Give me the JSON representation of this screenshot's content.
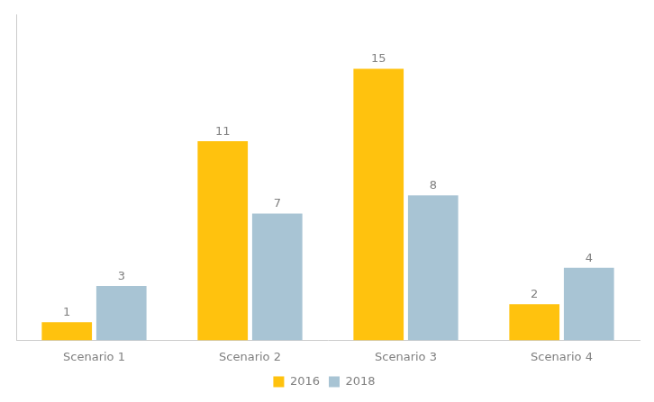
{
  "chart_data": {
    "type": "bar",
    "categories": [
      "Scenario 1",
      "Scenario 2",
      "Scenario 3",
      "Scenario 4"
    ],
    "series": [
      {
        "name": "2016",
        "color": "#FFC20E",
        "values": [
          1,
          11,
          15,
          2
        ]
      },
      {
        "name": "2018",
        "color": "#A8C4D4",
        "values": [
          3,
          7,
          8,
          4
        ]
      }
    ],
    "ylim": [
      0,
      18
    ],
    "data_labels": true,
    "tick_labels": "x",
    "legend": "bottom",
    "grid": false
  }
}
